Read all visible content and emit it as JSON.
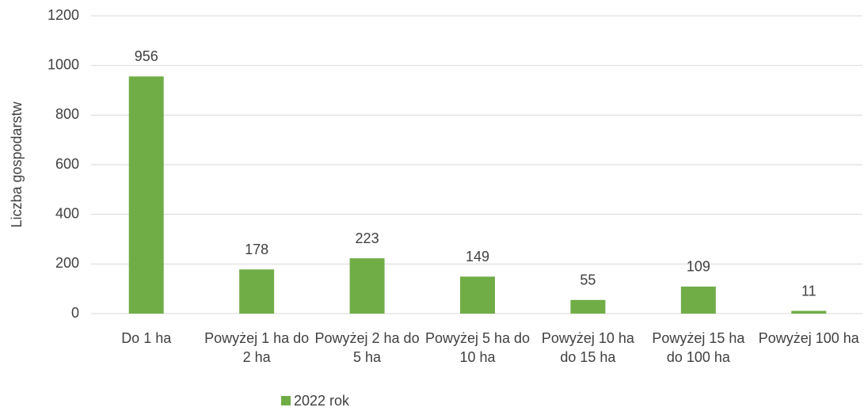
{
  "chart_data": {
    "type": "bar",
    "y_label": "Liczba gospodarstw",
    "categories": [
      "Do 1 ha",
      "Powyżej 1 ha do 2 ha",
      "Powyżej 2 ha do 5 ha",
      "Powyżej 5 ha do 10 ha",
      "Powyżej 10 ha do 15 ha",
      "Powyżej 15 ha do 100 ha",
      "Powyżej 100 ha"
    ],
    "series": [
      {
        "name": "2022 rok",
        "color": "#70ad47",
        "values": [
          956,
          178,
          223,
          149,
          55,
          109,
          11
        ]
      }
    ],
    "ylim": [
      0,
      1200
    ],
    "yticks": [
      0,
      200,
      400,
      600,
      800,
      1000,
      1200
    ],
    "grid": true,
    "legend": "bottom"
  }
}
